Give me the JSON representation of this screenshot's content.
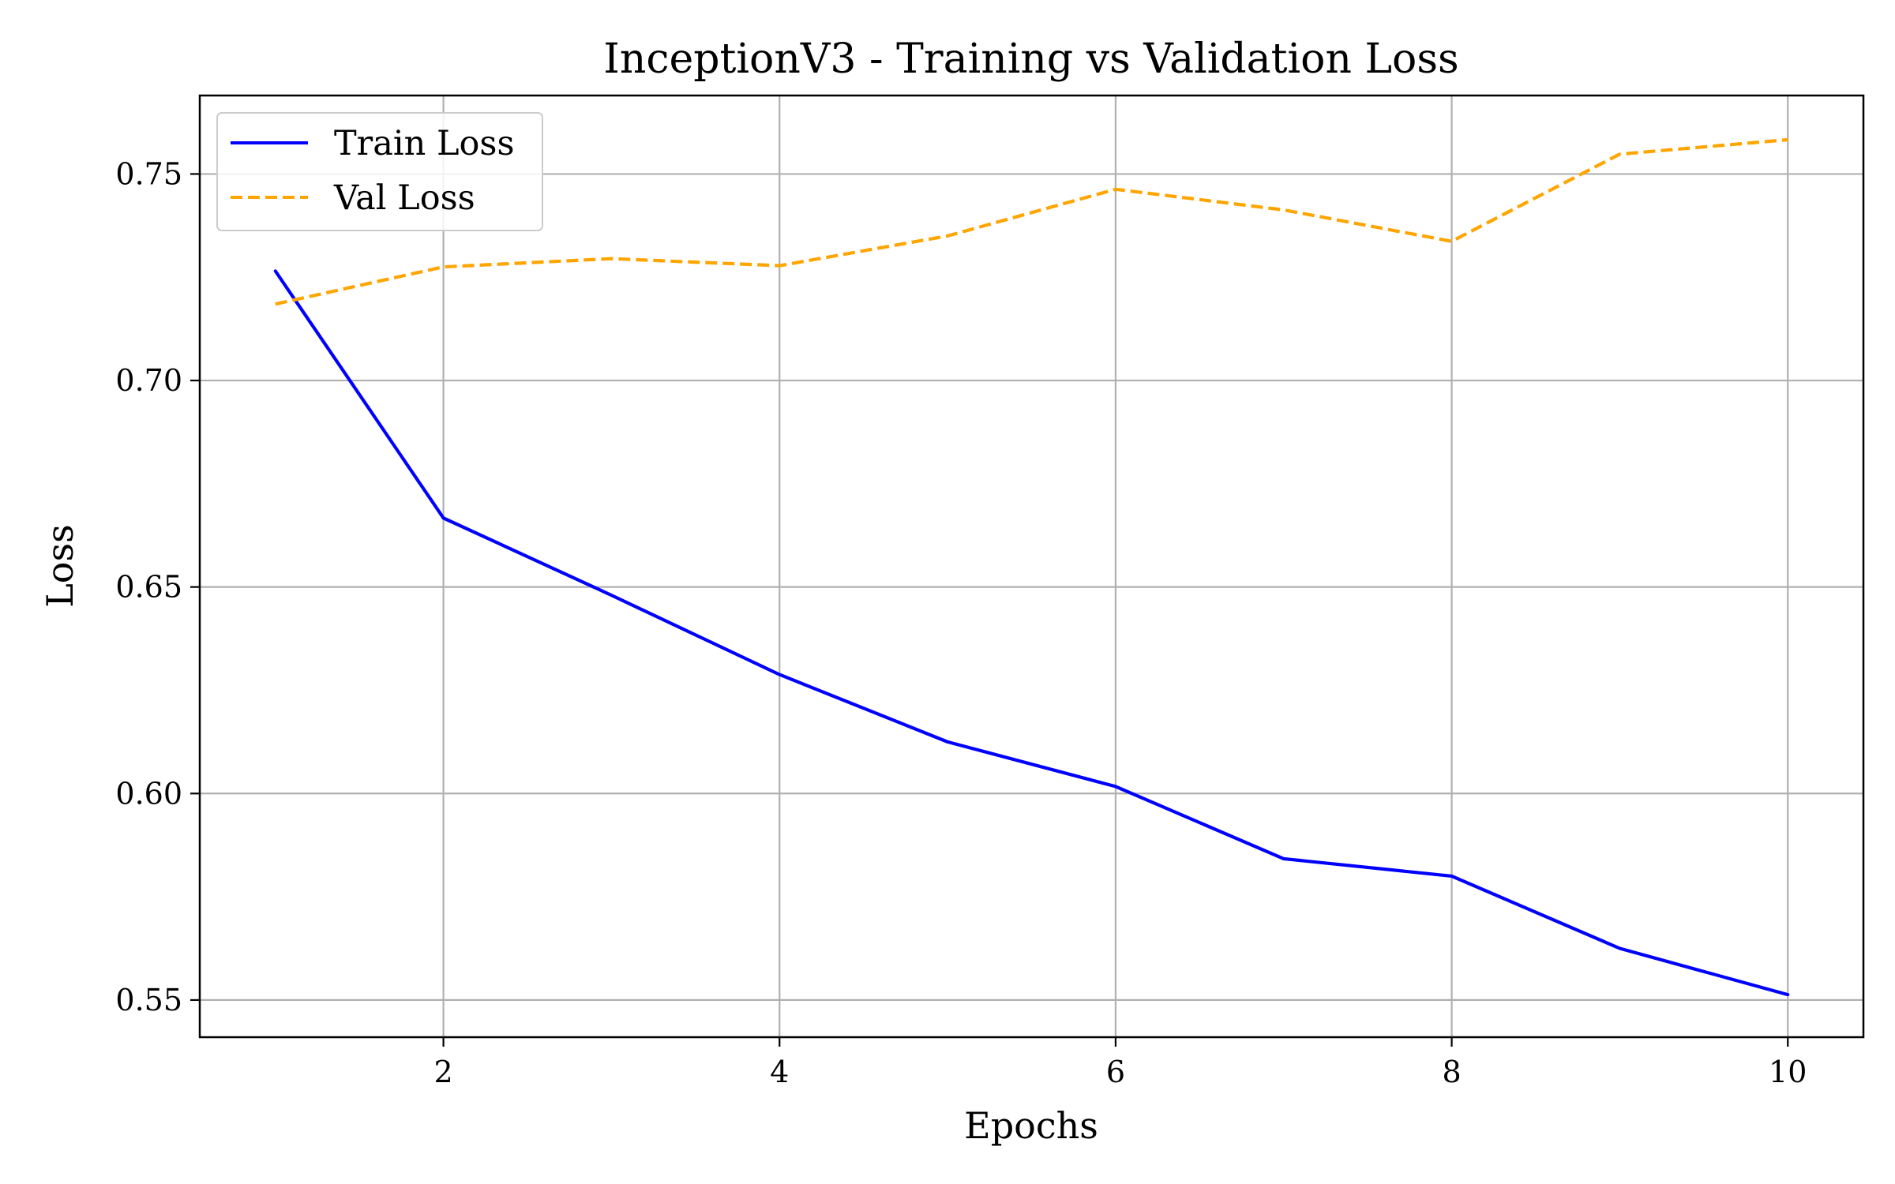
{
  "chart_data": {
    "type": "line",
    "title": "InceptionV3 - Training vs Validation Loss",
    "xlabel": "Epochs",
    "ylabel": "Loss",
    "x": [
      1,
      2,
      3,
      4,
      5,
      6,
      7,
      8,
      9,
      10
    ],
    "series": [
      {
        "name": "Train Loss",
        "values": [
          0.7265,
          0.6667,
          0.648,
          0.6288,
          0.6125,
          0.6017,
          0.5842,
          0.58,
          0.5625,
          0.5513
        ],
        "color": "#0000ff",
        "line_style": "solid"
      },
      {
        "name": "Val Loss",
        "values": [
          0.7185,
          0.7275,
          0.7295,
          0.7278,
          0.735,
          0.7463,
          0.7413,
          0.7337,
          0.7548,
          0.7583
        ],
        "color": "#ffa500",
        "line_style": "dashed"
      }
    ],
    "xlim": [
      0.55,
      10.45
    ],
    "ylim": [
      0.541,
      0.769
    ],
    "xticks": [
      2,
      4,
      6,
      8,
      10
    ],
    "xtick_labels": [
      "2",
      "4",
      "6",
      "8",
      "10"
    ],
    "yticks": [
      0.55,
      0.6,
      0.65,
      0.7,
      0.75
    ],
    "ytick_labels": [
      "0.55",
      "0.60",
      "0.65",
      "0.70",
      "0.75"
    ],
    "grid": true,
    "grid_color": "#b0b0b0",
    "legend_position": "top-left"
  }
}
